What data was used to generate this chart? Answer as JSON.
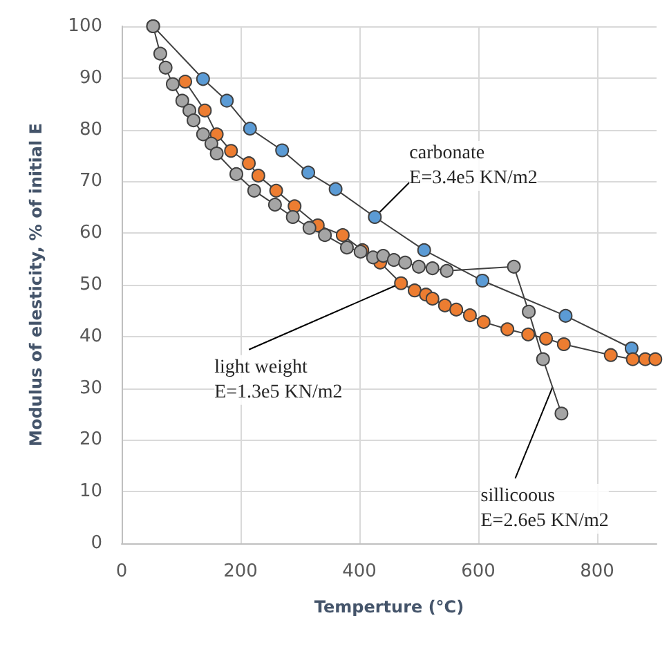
{
  "chart_data": {
    "type": "line",
    "xlabel": "Temperture (°C)",
    "ylabel": "Modulus of elesticity, % of initial E",
    "xlim": [
      0,
      900
    ],
    "xticks": [
      0,
      200,
      400,
      600,
      800
    ],
    "ylim": [
      0,
      100
    ],
    "yticks": [
      0,
      10,
      20,
      30,
      40,
      50,
      60,
      70,
      80,
      90,
      100
    ],
    "grid": true,
    "marker": "circle",
    "line_style": "solid",
    "series": [
      {
        "color": "#5b9bd5",
        "x": [
          53,
          137,
          177,
          216,
          270,
          314,
          360,
          426,
          509,
          607,
          747,
          858
        ],
        "values": [
          100,
          89.8,
          85.6,
          80.2,
          76,
          71.7,
          68.5,
          63.1,
          56.7,
          50.8,
          44,
          37.7
        ]
      },
      {
        "color": "#ed7d31",
        "x": [
          107,
          140,
          160,
          184,
          214,
          230,
          260,
          291,
          330,
          372,
          405,
          435,
          470,
          493,
          512,
          523,
          544,
          563,
          586,
          609,
          649,
          684,
          714,
          744,
          823,
          860,
          881,
          898
        ],
        "values": [
          89.3,
          83.7,
          79.1,
          75.9,
          73.5,
          71.1,
          68.2,
          65.2,
          61.5,
          59.6,
          56.7,
          54.3,
          50.3,
          48.9,
          48.1,
          47.3,
          46,
          45.2,
          44.1,
          42.8,
          41.4,
          40.4,
          39.6,
          38.5,
          36.4,
          35.6,
          35.6,
          35.6
        ]
      },
      {
        "color": "#a5a5a5",
        "x": [
          53,
          65,
          74,
          86,
          102,
          114,
          121,
          137,
          151,
          160,
          193,
          223,
          258,
          288,
          316,
          342,
          379,
          402,
          423,
          440,
          458,
          477,
          500,
          523,
          547,
          660,
          685,
          709,
          740
        ],
        "values": [
          100,
          94.7,
          92,
          88.8,
          85.6,
          83.7,
          81.8,
          79.1,
          77.3,
          75.4,
          71.4,
          68.2,
          65.5,
          63.1,
          61,
          59.6,
          57.2,
          56.4,
          55.3,
          55.6,
          54.8,
          54.3,
          53.5,
          53.2,
          52.7,
          53.5,
          44.8,
          35.6,
          25.1
        ]
      }
    ],
    "annotations": [
      {
        "text": "carbonate\nE=3.4e5 KN/m2",
        "x": 426,
        "y": 63.1
      },
      {
        "text": "light weight\nE=1.3e5 KN/m2",
        "x": 470,
        "y": 50.3
      },
      {
        "text": "sillicoous\nE=2.6e5 KN/m2",
        "x": 725,
        "y": 30.2
      }
    ]
  }
}
